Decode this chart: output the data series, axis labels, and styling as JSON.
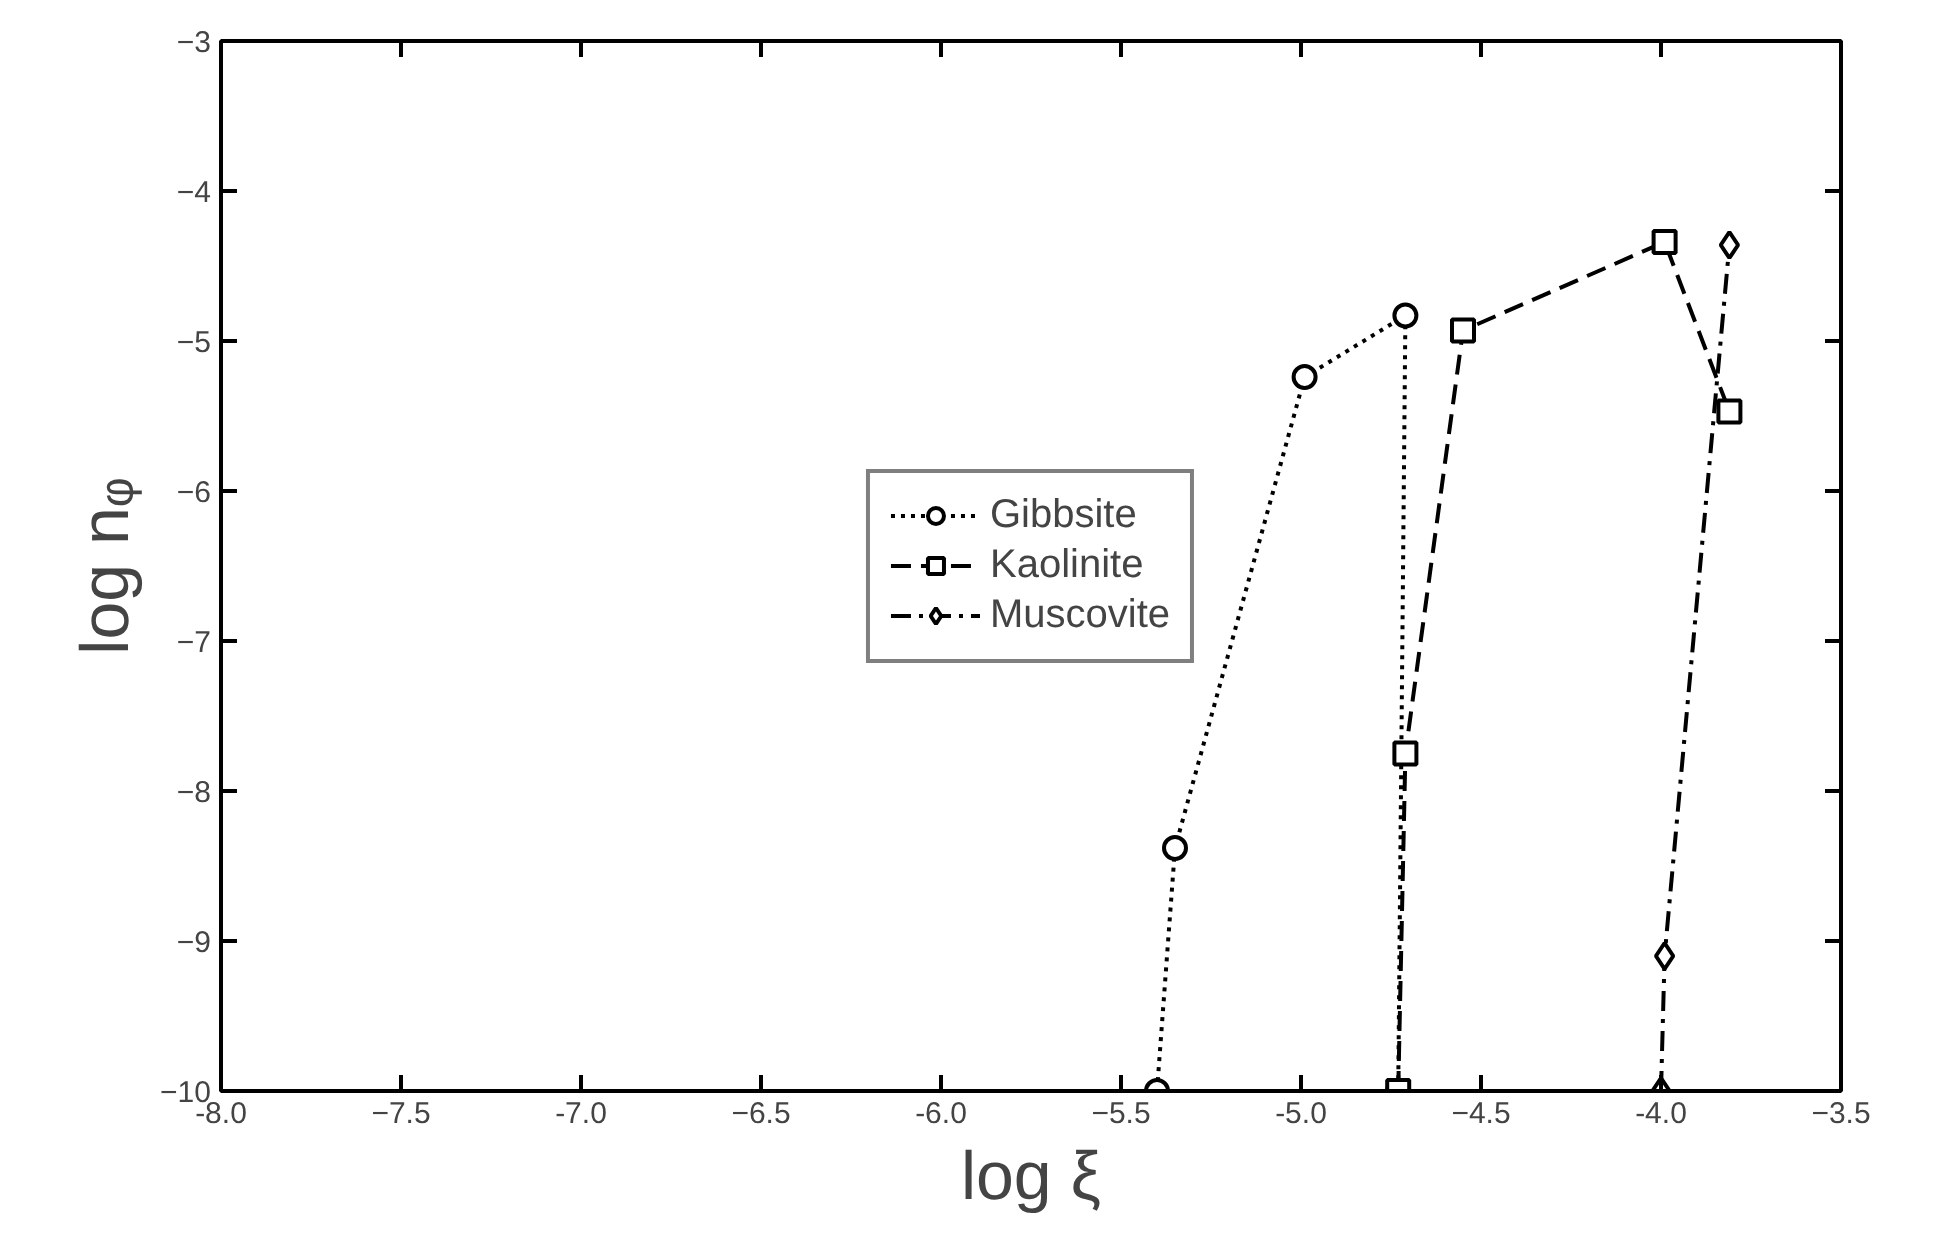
{
  "chart_data": {
    "type": "line",
    "xlabel": "log ξ",
    "ylabel": "log nᵩ",
    "xlim": [
      -8.0,
      -3.5
    ],
    "ylim": [
      -10,
      -3
    ],
    "xticks": [
      {
        "value": -8.0,
        "label": "-8.0"
      },
      -7.5,
      {
        "value": -7.0,
        "label": "-7.0"
      },
      -6.5,
      {
        "value": -6.0,
        "label": "-6.0"
      },
      -5.5,
      {
        "value": -5.0,
        "label": "-5.0"
      },
      -4.5,
      {
        "value": -4.0,
        "label": "-4.0"
      },
      -3.5
    ],
    "yticks": [
      -10,
      -9,
      -8,
      -7,
      -6,
      -5,
      -4,
      -3
    ],
    "grid": false,
    "legend": "center",
    "series": [
      {
        "name": "Gibbsite",
        "color": "#000000",
        "marker": "circle",
        "line_style": "dotted",
        "x": [
          -5.4,
          -5.35,
          -4.99,
          -4.71,
          -4.73
        ],
        "values": [
          -10,
          -8.38,
          -5.24,
          -4.83,
          -10
        ]
      },
      {
        "name": "Kaolinite",
        "color": "#000000",
        "marker": "square",
        "line_style": "dashed",
        "x": [
          -4.73,
          -4.71,
          -4.55,
          -3.99,
          -3.81
        ],
        "values": [
          -10,
          -7.75,
          -4.93,
          -4.34,
          -5.47
        ]
      },
      {
        "name": "Muscovite",
        "color": "#000000",
        "marker": "diamond",
        "line_style": "dashdot",
        "x": [
          -4.0,
          -3.99,
          -3.81
        ],
        "values": [
          -10,
          -9.1,
          -4.36
        ]
      }
    ]
  }
}
